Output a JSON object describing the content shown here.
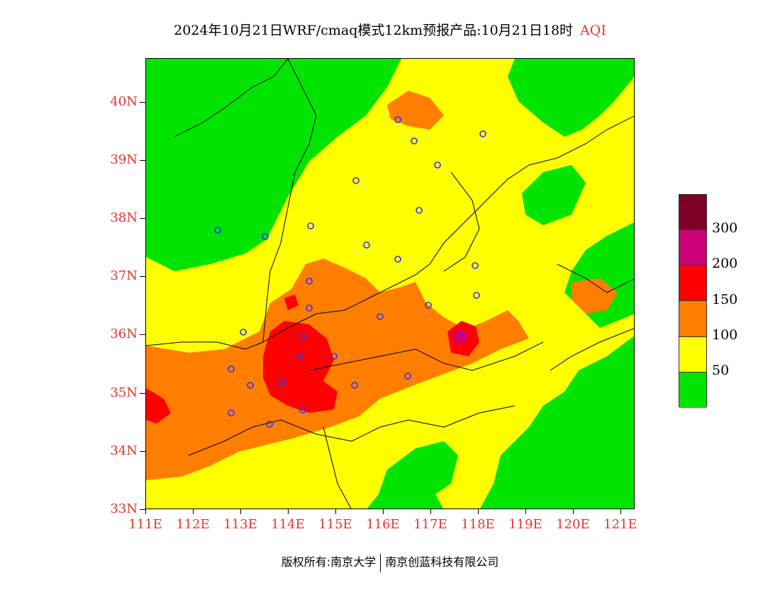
{
  "title": {
    "main": "2024年10月21日WRF/cmaq模式12km预报产品:10月21日18时",
    "variable": "AQI"
  },
  "map": {
    "lat_labels": [
      "40N",
      "39N",
      "38N",
      "37N",
      "36N",
      "35N",
      "34N",
      "33N"
    ],
    "lon_labels": [
      "111E",
      "112E",
      "113E",
      "114E",
      "115E",
      "116E",
      "117E",
      "118E",
      "119E",
      "120E",
      "121E"
    ],
    "lat_range": [
      33,
      40.75
    ],
    "lon_range": [
      111,
      121.3
    ],
    "colors": {
      "good": "#00e400",
      "moderate": "#ffff00",
      "usg": "#ff7e00",
      "unhealthy": "#ff0000",
      "very_unhealthy": "#cc0077",
      "hazardous": "#7e0023",
      "border": "#000000",
      "city_marker": "#3333ff",
      "label_color": "#e8322e"
    }
  },
  "legend": {
    "labels": [
      "300",
      "200",
      "150",
      "100",
      "50"
    ],
    "colors": [
      "#7e0023",
      "#cc0077",
      "#ff0000",
      "#ff7e00",
      "#ffff00",
      "#00e400"
    ]
  },
  "footer": {
    "copyright": "版权所有:南京大学",
    "company": "南京创蓝科技有限公司"
  }
}
